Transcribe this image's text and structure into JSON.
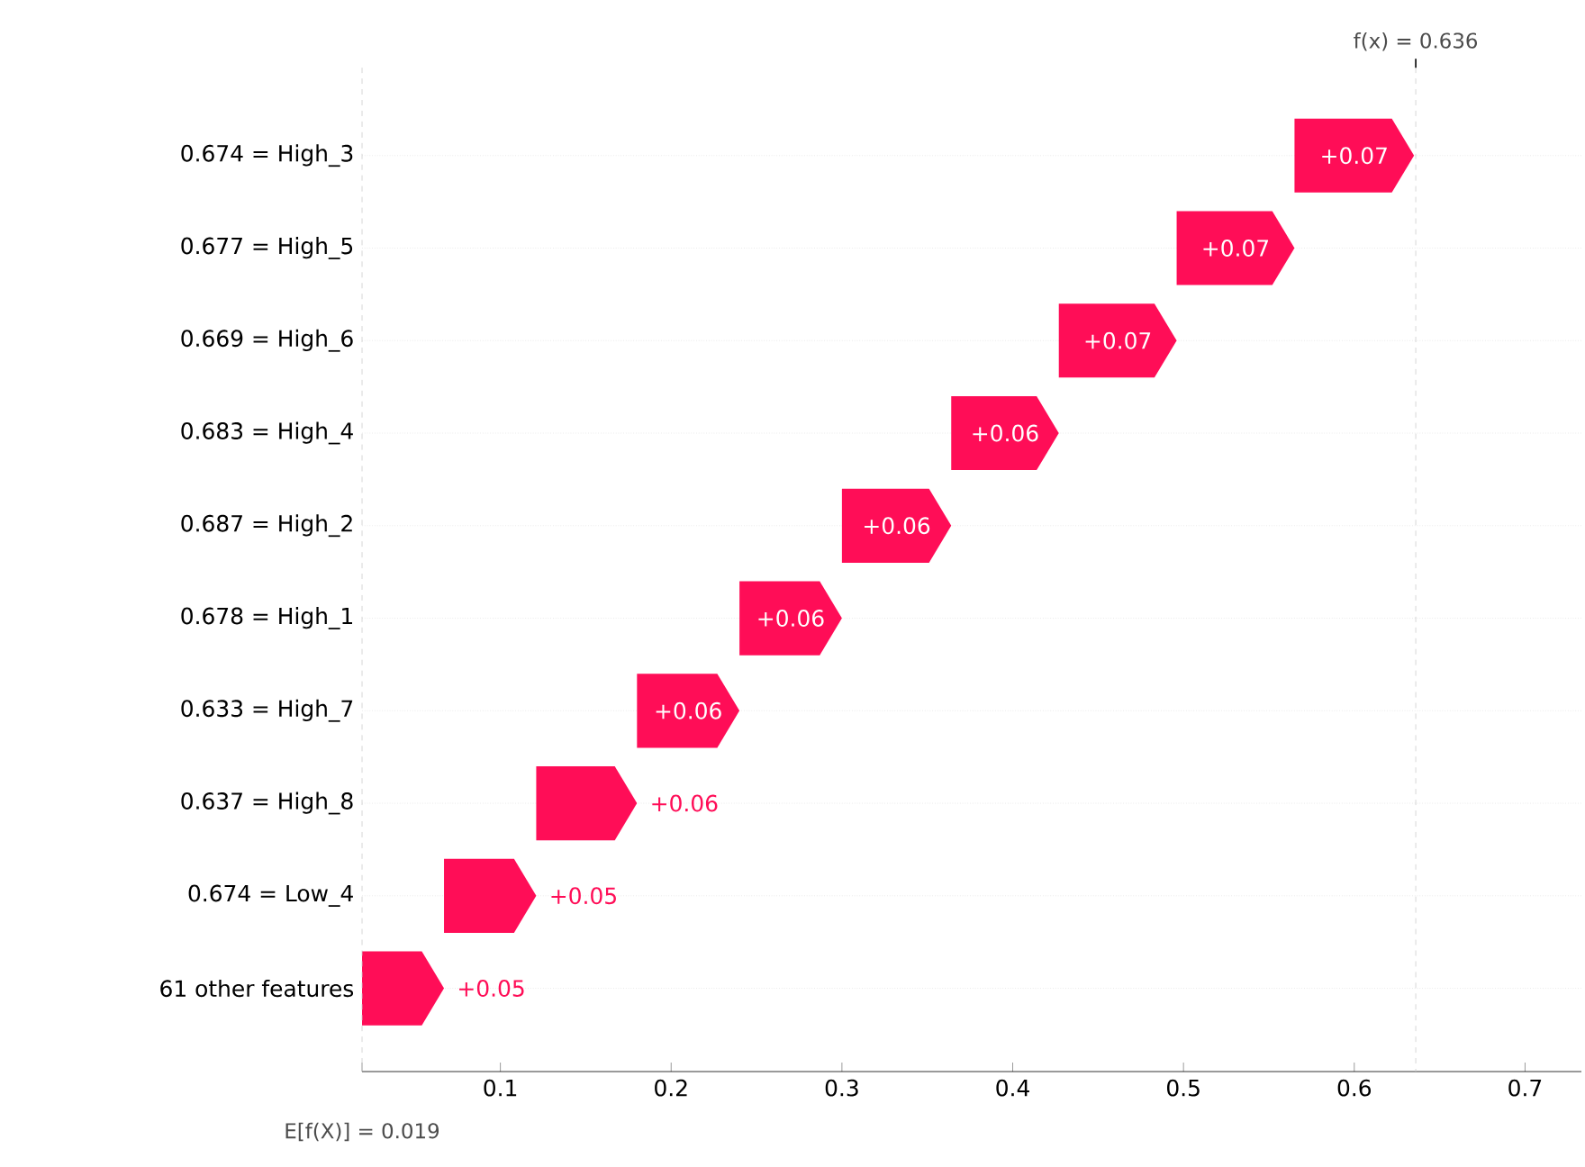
{
  "chart_data": {
    "type": "bar",
    "orientation": "horizontal",
    "color": "#ff0d57",
    "categories": [
      "0.674 = High_3",
      "0.677 = High_5",
      "0.669 = High_6",
      "0.683 = High_4",
      "0.687 = High_2",
      "0.678 = High_1",
      "0.633 = High_7",
      "0.637 = High_8",
      "0.674 = Low_4",
      "61 other features"
    ],
    "base": [
      0.565,
      0.496,
      0.427,
      0.364,
      0.3,
      0.24,
      0.18,
      0.121,
      0.067,
      0.019
    ],
    "values": [
      0.07,
      0.069,
      0.069,
      0.063,
      0.064,
      0.06,
      0.06,
      0.059,
      0.054,
      0.048
    ],
    "value_labels": [
      "+0.07",
      "+0.07",
      "+0.07",
      "+0.06",
      "+0.06",
      "+0.06",
      "+0.06",
      "+0.06",
      "+0.05",
      "+0.05"
    ],
    "xlim": [
      0.019,
      0.733
    ],
    "xticks": [
      {
        "value": 0.019,
        "label": null
      },
      0.1,
      0.2,
      0.3,
      0.4,
      0.5,
      0.6,
      0.7
    ],
    "ref_lines": [
      {
        "axis": "x",
        "value": 0.636,
        "label": "f(x) = 0.636",
        "color": "#cccccc",
        "line_style": "dashed"
      },
      {
        "axis": "x",
        "value": 0.019,
        "label": "E[f(X)] = 0.019",
        "color": "#cccccc",
        "line_style": "dashed"
      }
    ],
    "grid": "y"
  }
}
